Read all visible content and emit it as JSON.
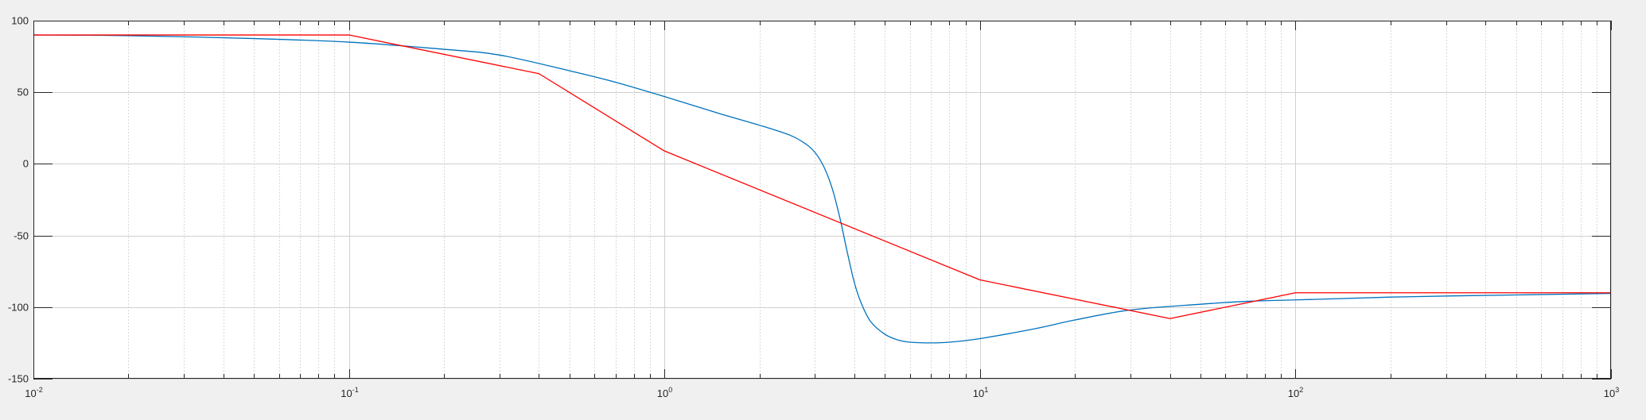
{
  "chart_data": {
    "type": "line",
    "title": "",
    "xlabel": "",
    "ylabel": "",
    "xscale": "log",
    "xlim": [
      0.01,
      1000
    ],
    "ylim": [
      -150,
      100
    ],
    "grid": "on (major and minor)",
    "legend": "none",
    "xticks": [
      {
        "base": "10",
        "exp": "-2",
        "value": 0.01
      },
      {
        "base": "10",
        "exp": "-1",
        "value": 0.1
      },
      {
        "base": "10",
        "exp": "0",
        "value": 1
      },
      {
        "base": "10",
        "exp": "1",
        "value": 10
      },
      {
        "base": "10",
        "exp": "2",
        "value": 100
      },
      {
        "base": "10",
        "exp": "3",
        "value": 1000
      }
    ],
    "yticks": [
      {
        "label": "100",
        "value": 100
      },
      {
        "label": "50",
        "value": 50
      },
      {
        "label": "0",
        "value": 0
      },
      {
        "label": "-50",
        "value": -50
      },
      {
        "label": "-100",
        "value": -100
      },
      {
        "label": "-150",
        "value": -150
      }
    ],
    "series": [
      {
        "color": "#0072bd",
        "x": [
          0.01,
          0.02,
          0.05,
          0.1,
          0.2,
          0.3,
          0.5,
          0.7,
          1,
          1.5,
          2,
          2.5,
          2.8,
          3.0,
          3.2,
          3.4,
          3.6,
          3.8,
          4.0,
          4.2,
          4.5,
          5,
          5.5,
          6,
          7,
          8,
          10,
          15,
          20,
          30,
          50,
          70,
          100,
          200,
          500,
          1000
        ],
        "y": [
          90,
          89.5,
          87.5,
          85,
          80,
          76,
          65,
          57,
          47,
          35,
          27,
          20,
          14,
          8,
          -2,
          -17,
          -38,
          -62,
          -83,
          -97,
          -110,
          -119,
          -123,
          -124.5,
          -125,
          -124.5,
          -122,
          -115,
          -109,
          -102,
          -98,
          -96,
          -95,
          -93,
          -91.5,
          -90.5
        ]
      },
      {
        "color": "#ff0000",
        "x": [
          0.01,
          0.1,
          0.4,
          1,
          10,
          40,
          100,
          1000
        ],
        "y": [
          90,
          90,
          63,
          9,
          -81,
          -108,
          -90,
          -90
        ]
      }
    ]
  }
}
